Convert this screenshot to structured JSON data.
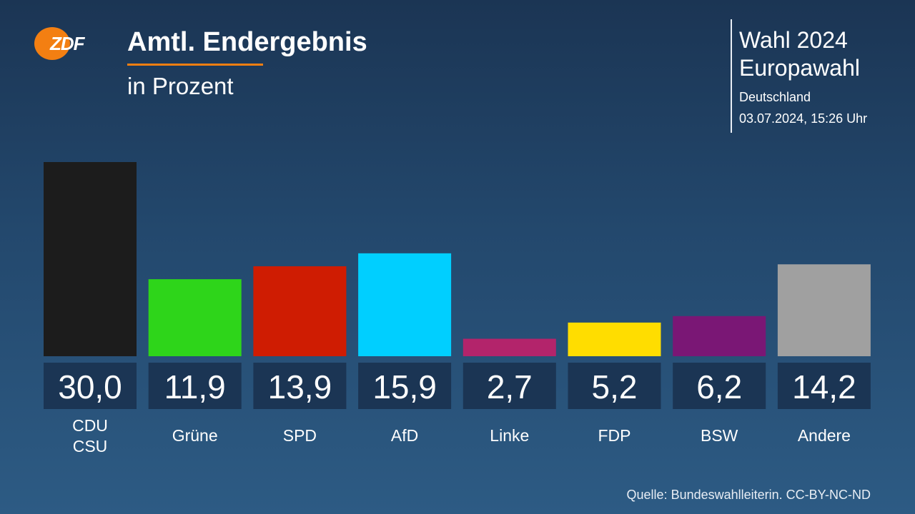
{
  "header": {
    "logo_text": "ZDF",
    "title": "Amtl. Endergebnis",
    "subtitle": "in Prozent"
  },
  "info": {
    "line1": "Wahl 2024",
    "line2": "Europawahl",
    "line3": "Deutschland",
    "line4": "03.07.2024, 15:26 Uhr"
  },
  "chart_data": {
    "type": "bar",
    "categories": [
      [
        "CDU",
        "CSU"
      ],
      [
        "Grüne"
      ],
      [
        "SPD"
      ],
      [
        "AfD"
      ],
      [
        "Linke"
      ],
      [
        "FDP"
      ],
      [
        "BSW"
      ],
      [
        "Andere"
      ]
    ],
    "values": [
      30.0,
      11.9,
      13.9,
      15.9,
      2.7,
      5.2,
      6.2,
      14.2
    ],
    "value_labels": [
      "30,0",
      "11,9",
      "13,9",
      "15,9",
      "2,7",
      "5,2",
      "6,2",
      "14,2"
    ],
    "colors": [
      "#1c1c1c",
      "#2ed51a",
      "#cf1c02",
      "#00cfff",
      "#b3246b",
      "#ffdd00",
      "#7a1775",
      "#a0a0a0"
    ],
    "ylim": [
      0,
      30
    ],
    "grid": false,
    "legend": "none"
  },
  "footer": {
    "source": "Quelle: Bundeswahlleiterin. CC-BY-NC-ND"
  }
}
